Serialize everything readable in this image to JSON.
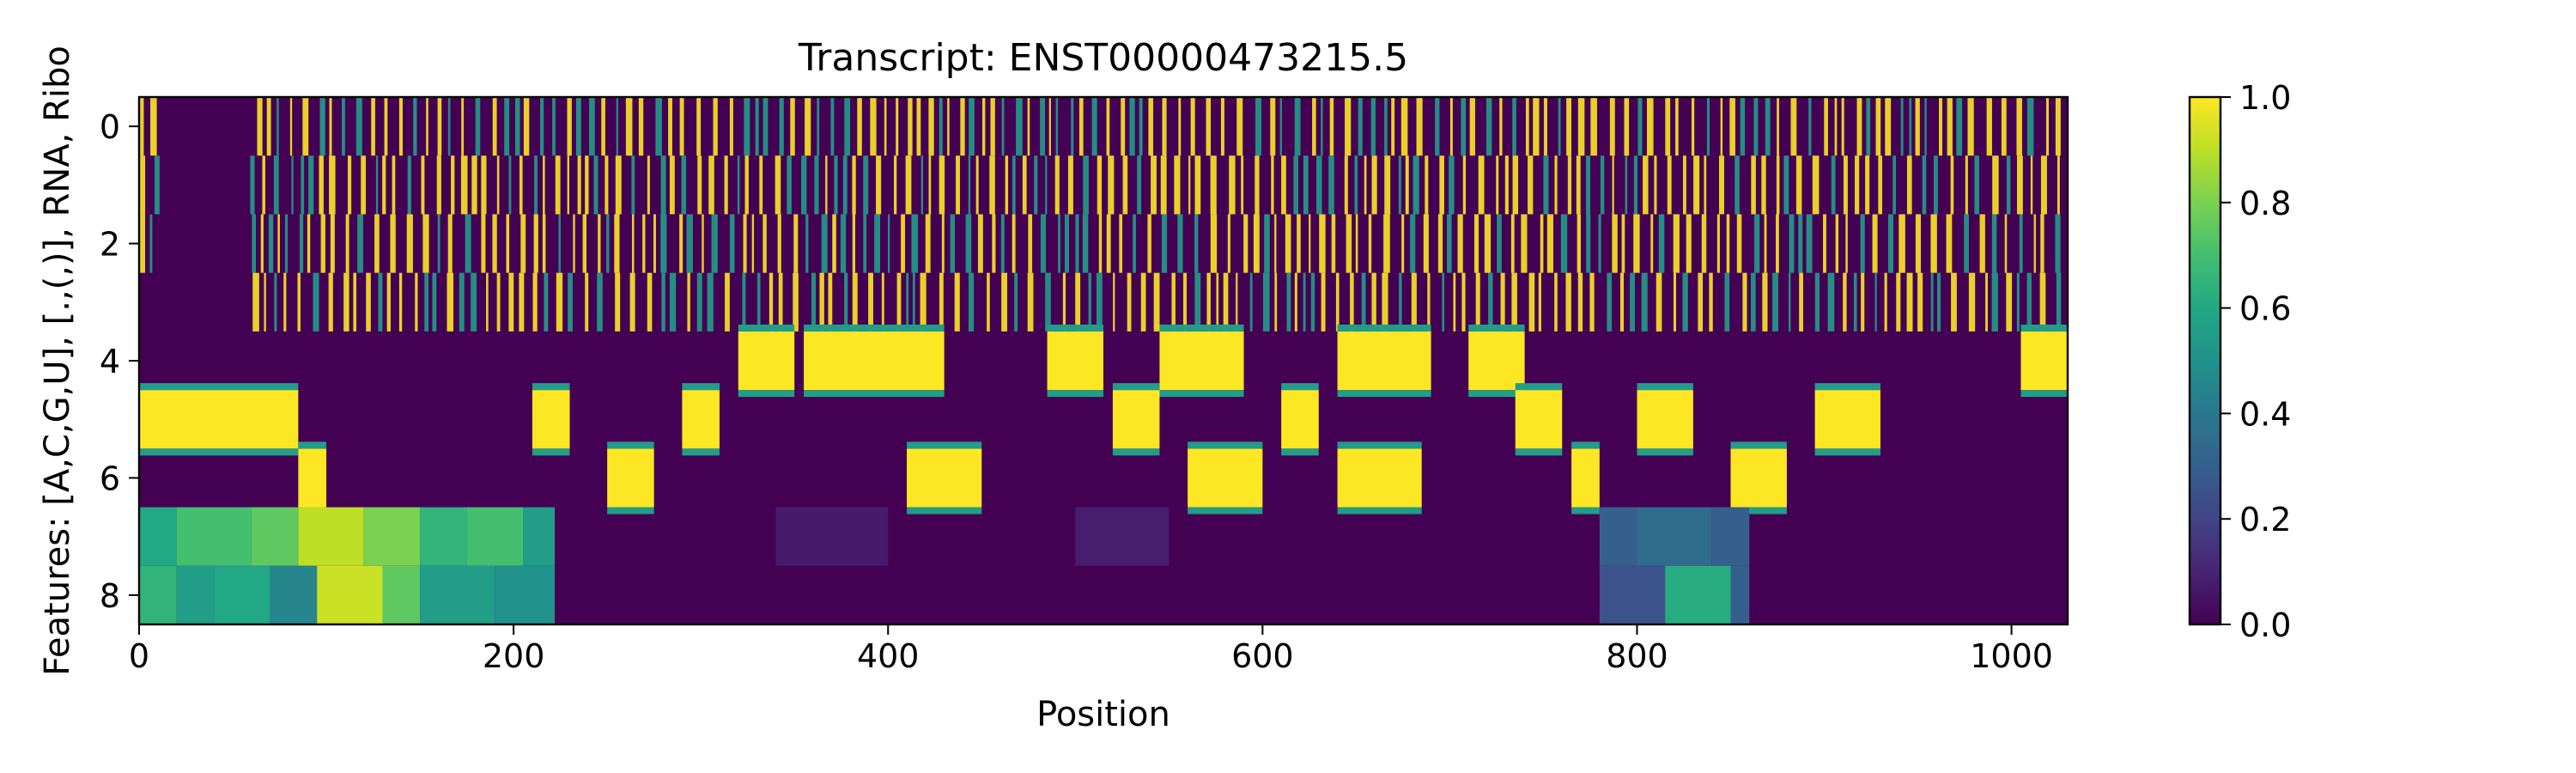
{
  "chart_data": {
    "type": "heatmap",
    "title": "Transcript: ENST00000473215.5",
    "xlabel": "Position",
    "ylabel": "Features: [A,C,G,U], [.,(,)], RNA, Ribo",
    "xlim": [
      0,
      1030
    ],
    "ylim": [
      8.5,
      -0.5
    ],
    "x_ticks": [
      0,
      200,
      400,
      600,
      800,
      1000
    ],
    "y_ticks": [
      0,
      2,
      4,
      6,
      8
    ],
    "colormap": "viridis",
    "colorbar": {
      "range": [
        0.0,
        1.0
      ],
      "ticks": [
        "0.0",
        "0.2",
        "0.4",
        "0.6",
        "0.8",
        "1.0"
      ]
    },
    "rows": [
      {
        "row": 0,
        "description": "one-hot nucleotide, sparse vertical yellow streaks; absent over ~10-55"
      },
      {
        "row": 1,
        "description": "one-hot nucleotide, sparse vertical yellow streaks; absent over ~10-55"
      },
      {
        "row": 2,
        "description": "one-hot nucleotide, sparse vertical yellow streaks; absent over ~10-55"
      },
      {
        "row": 3,
        "description": "one-hot nucleotide, sparse vertical yellow streaks; absent over ~10-55"
      },
      {
        "row": 4,
        "description": "one-hot structure, long yellow runs"
      },
      {
        "row": 5,
        "description": "one-hot structure, long yellow runs, solid ~0-85"
      },
      {
        "row": 6,
        "description": "one-hot structure, long yellow runs"
      },
      {
        "row": 7,
        "description": "continuous RNA coverage, ~0.5-0.9 over 0-220, ~0.3 over 780-860, near 0 elsewhere"
      },
      {
        "row": 8,
        "description": "continuous Ribo coverage, ~0.5-1.0 over 0-220, ~0.6 over 820-850, near 0 elsewhere"
      }
    ],
    "row_segments": {
      "4": [
        [
          320,
          350
        ],
        [
          355,
          430
        ],
        [
          485,
          515
        ],
        [
          545,
          590
        ],
        [
          640,
          690
        ],
        [
          710,
          740
        ],
        [
          1005,
          1030
        ]
      ],
      "5": [
        [
          0,
          85
        ],
        [
          210,
          230
        ],
        [
          290,
          310
        ],
        [
          520,
          545
        ],
        [
          610,
          630
        ],
        [
          735,
          760
        ],
        [
          800,
          830
        ],
        [
          895,
          930
        ]
      ],
      "6": [
        [
          85,
          100
        ],
        [
          250,
          275
        ],
        [
          410,
          450
        ],
        [
          560,
          600
        ],
        [
          640,
          685
        ],
        [
          765,
          780
        ],
        [
          850,
          880
        ]
      ]
    },
    "continuous_rows": {
      "7": [
        {
          "x": [
            0,
            20
          ],
          "v": 0.6
        },
        {
          "x": [
            20,
            60
          ],
          "v": 0.7
        },
        {
          "x": [
            60,
            85
          ],
          "v": 0.75
        },
        {
          "x": [
            85,
            120
          ],
          "v": 0.9
        },
        {
          "x": [
            120,
            150
          ],
          "v": 0.8
        },
        {
          "x": [
            150,
            175
          ],
          "v": 0.65
        },
        {
          "x": [
            175,
            205
          ],
          "v": 0.7
        },
        {
          "x": [
            205,
            222
          ],
          "v": 0.55
        },
        {
          "x": [
            340,
            400
          ],
          "v": 0.07
        },
        {
          "x": [
            500,
            550
          ],
          "v": 0.08
        },
        {
          "x": [
            780,
            800
          ],
          "v": 0.3
        },
        {
          "x": [
            800,
            840
          ],
          "v": 0.35
        },
        {
          "x": [
            840,
            860
          ],
          "v": 0.3
        }
      ],
      "8": [
        {
          "x": [
            0,
            20
          ],
          "v": 0.65
        },
        {
          "x": [
            20,
            40
          ],
          "v": 0.55
        },
        {
          "x": [
            40,
            70
          ],
          "v": 0.6
        },
        {
          "x": [
            70,
            95
          ],
          "v": 0.45
        },
        {
          "x": [
            95,
            130
          ],
          "v": 0.92
        },
        {
          "x": [
            130,
            150
          ],
          "v": 0.75
        },
        {
          "x": [
            150,
            190
          ],
          "v": 0.55
        },
        {
          "x": [
            190,
            222
          ],
          "v": 0.5
        },
        {
          "x": [
            780,
            815
          ],
          "v": 0.25
        },
        {
          "x": [
            815,
            850
          ],
          "v": 0.62
        },
        {
          "x": [
            850,
            860
          ],
          "v": 0.3
        }
      ]
    }
  }
}
